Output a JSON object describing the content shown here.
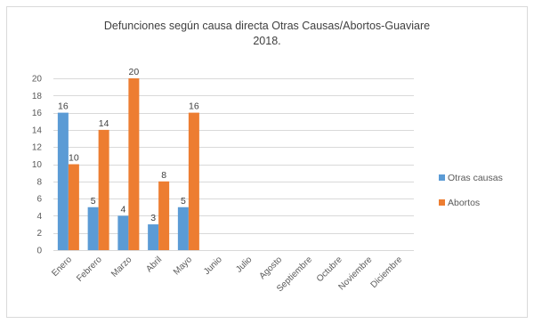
{
  "chart_data": {
    "type": "bar",
    "title": "Defunciones según causa directa Otras Causas/Abortos-Guaviare 2018.",
    "xlabel": "",
    "ylabel": "",
    "categories": [
      "Enero",
      "Febrero",
      "Marzo",
      "Abril",
      "Mayo",
      "Junio",
      "Julio",
      "Agosto",
      "Septiembre",
      "Octubre",
      "Noviembre",
      "Diciembre"
    ],
    "series": [
      {
        "name": "Otras causas",
        "color": "#5B9BD5",
        "values": [
          16,
          5,
          4,
          3,
          5,
          null,
          null,
          null,
          null,
          null,
          null,
          null
        ]
      },
      {
        "name": "Abortos",
        "color": "#ED7D31",
        "values": [
          10,
          14,
          20,
          8,
          16,
          null,
          null,
          null,
          null,
          null,
          null,
          null
        ]
      }
    ],
    "ylim": [
      0,
      20
    ],
    "yticks": [
      0,
      2,
      4,
      6,
      8,
      10,
      12,
      14,
      16,
      18,
      20
    ],
    "grid": true,
    "legend": "right",
    "data_labels": true
  }
}
